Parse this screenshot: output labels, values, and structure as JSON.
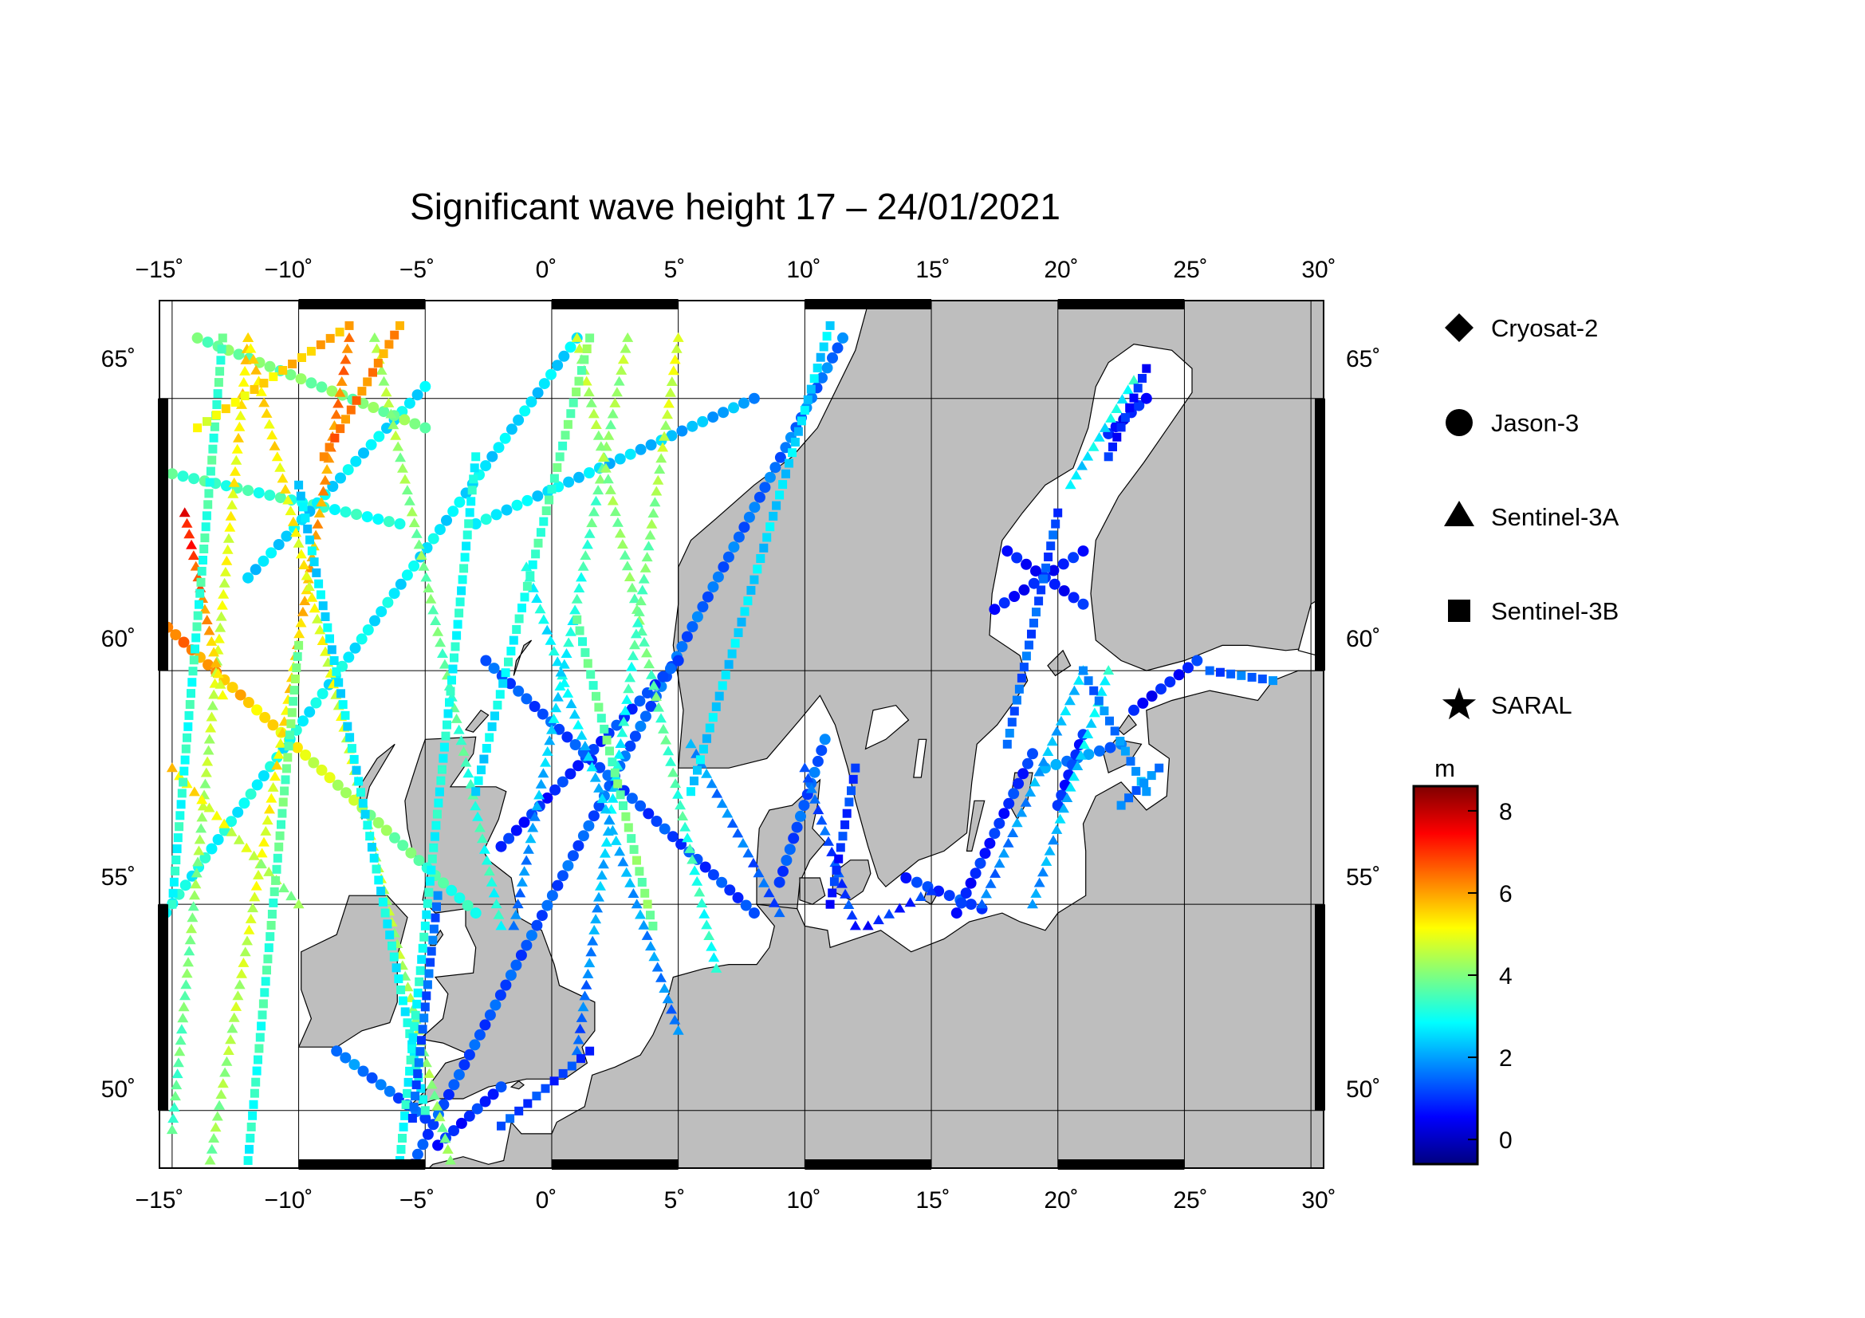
{
  "title": "Significant wave height 17 – 24/01/2021",
  "map": {
    "lon_range": [
      -15.5,
      30.5
    ],
    "lat_range": [
      48.5,
      66.6
    ],
    "lon_ticks": [
      -15,
      -10,
      -5,
      0,
      5,
      10,
      15,
      20,
      25,
      30
    ],
    "lat_ticks": [
      50,
      55,
      60,
      65
    ],
    "lon_tick_labels": [
      "−15˚",
      "−10˚",
      "−5˚",
      "0˚",
      "5˚",
      "10˚",
      "15˚",
      "20˚",
      "25˚",
      "30˚"
    ],
    "lat_tick_labels": [
      "50˚",
      "55˚",
      "60˚",
      "65˚"
    ],
    "land_color": "#bebebe",
    "sea_color": "#ffffff",
    "grid": true
  },
  "legend": {
    "satellites": [
      {
        "name": "Cryosat-2",
        "marker": "diamond"
      },
      {
        "name": "Jason-3",
        "marker": "circle"
      },
      {
        "name": "Sentinel-3A",
        "marker": "triangle"
      },
      {
        "name": "Sentinel-3B",
        "marker": "square"
      },
      {
        "name": "SARAL",
        "marker": "star"
      }
    ]
  },
  "colorbar": {
    "unit": "m",
    "min": -0.6,
    "max": 8.6,
    "ticks": [
      0,
      2,
      4,
      6,
      8
    ],
    "tick_labels": [
      "0",
      "2",
      "4",
      "6",
      "8"
    ],
    "colors": [
      "#00007f",
      "#0000ff",
      "#007fff",
      "#00ffff",
      "#7fff7f",
      "#ffff00",
      "#ff7f00",
      "#ff0000",
      "#7f0000"
    ]
  },
  "chart_data": {
    "type": "scatter",
    "variable": "significant wave height (m)",
    "tracks": [
      {
        "sat": "Jason-3",
        "from": [
          -5.5,
          48.6
        ],
        "to": [
          11.5,
          66.0
        ],
        "v0": 1.2,
        "v1": 1.6
      },
      {
        "sat": "Jason-3",
        "from": [
          -15.5,
          61.0
        ],
        "to": [
          -3.0,
          54.8
        ],
        "v0": 6.6,
        "v1": 3.0
      },
      {
        "sat": "Jason-3",
        "from": [
          -15.5,
          54.6
        ],
        "to": [
          1.0,
          66.0
        ],
        "v0": 3.0,
        "v1": 2.5
      },
      {
        "sat": "Jason-3",
        "from": [
          -2.0,
          56.3
        ],
        "to": [
          5.0,
          60.2
        ],
        "v0": 0.8,
        "v1": 1.2
      },
      {
        "sat": "Jason-3",
        "from": [
          -2.6,
          60.2
        ],
        "to": [
          8.0,
          54.8
        ],
        "v0": 1.3,
        "v1": 1.1
      },
      {
        "sat": "Jason-3",
        "from": [
          -8.5,
          51.5
        ],
        "to": [
          -5.0,
          49.8
        ],
        "v0": 1.8,
        "v1": 1.2
      },
      {
        "sat": "Jason-3",
        "from": [
          -4.5,
          49.1
        ],
        "to": [
          -2.0,
          50.6
        ],
        "v0": 0.8,
        "v1": 1.0
      },
      {
        "sat": "Jason-3",
        "from": [
          9.0,
          55.5
        ],
        "to": [
          10.8,
          58.6
        ],
        "v0": 1.2,
        "v1": 1.5
      },
      {
        "sat": "Jason-3",
        "from": [
          14.0,
          55.6
        ],
        "to": [
          17.0,
          54.9
        ],
        "v0": 1.0,
        "v1": 1.2
      },
      {
        "sat": "Jason-3",
        "from": [
          16.0,
          54.8
        ],
        "to": [
          19.0,
          58.3
        ],
        "v0": 0.8,
        "v1": 1.0
      },
      {
        "sat": "Jason-3",
        "from": [
          17.5,
          61.2
        ],
        "to": [
          21.0,
          62.3
        ],
        "v0": 0.6,
        "v1": 0.8
      },
      {
        "sat": "Jason-3",
        "from": [
          18.0,
          62.3
        ],
        "to": [
          21.0,
          61.3
        ],
        "v0": 0.6,
        "v1": 0.8
      },
      {
        "sat": "Jason-3",
        "from": [
          23.0,
          59.2
        ],
        "to": [
          25.5,
          60.2
        ],
        "v0": 0.6,
        "v1": 0.9
      },
      {
        "sat": "Jason-3",
        "from": [
          19.5,
          58.0
        ],
        "to": [
          22.5,
          58.5
        ],
        "v0": 2.0,
        "v1": 1.5
      },
      {
        "sat": "Jason-3",
        "from": [
          20.0,
          57.2
        ],
        "to": [
          21.0,
          58.7
        ],
        "v0": 0.8,
        "v1": 1.0
      },
      {
        "sat": "Jason-3",
        "from": [
          22.0,
          64.4
        ],
        "to": [
          23.5,
          65.0
        ],
        "v0": 0.6,
        "v1": 0.8
      },
      {
        "sat": "Jason-3",
        "from": [
          -15.0,
          63.7
        ],
        "to": [
          -6.0,
          62.8
        ],
        "v0": 3.5,
        "v1": 3.0
      },
      {
        "sat": "Jason-3",
        "from": [
          -12.0,
          61.8
        ],
        "to": [
          -5.0,
          65.2
        ],
        "v0": 2.5,
        "v1": 2.7
      },
      {
        "sat": "Jason-3",
        "from": [
          -3.0,
          62.8
        ],
        "to": [
          8.0,
          65.0
        ],
        "v0": 2.8,
        "v1": 2.0
      },
      {
        "sat": "Jason-3",
        "from": [
          -14.0,
          66.0
        ],
        "to": [
          -5.0,
          64.5
        ],
        "v0": 3.8,
        "v1": 4.0
      },
      {
        "sat": "Sentinel-3A",
        "from": [
          -15.0,
          49.5
        ],
        "to": [
          -12.0,
          66.0
        ],
        "v0": 3.5,
        "v1": 5.5
      },
      {
        "sat": "Sentinel-3A",
        "from": [
          -13.5,
          48.7
        ],
        "to": [
          -8.0,
          66.0
        ],
        "v0": 4.0,
        "v1": 6.5
      },
      {
        "sat": "Sentinel-3A",
        "from": [
          -12.0,
          66.0
        ],
        "to": [
          -4.0,
          48.7
        ],
        "v0": 5.5,
        "v1": 4.0
      },
      {
        "sat": "Sentinel-3A",
        "from": [
          -7.0,
          66.0
        ],
        "to": [
          -2.0,
          54.5
        ],
        "v0": 4.5,
        "v1": 3.0
      },
      {
        "sat": "Sentinel-3A",
        "from": [
          -1.5,
          54.5
        ],
        "to": [
          3.0,
          66.0
        ],
        "v0": 1.5,
        "v1": 4.5
      },
      {
        "sat": "Sentinel-3A",
        "from": [
          1.0,
          66.0
        ],
        "to": [
          6.5,
          53.5
        ],
        "v0": 4.5,
        "v1": 3.0
      },
      {
        "sat": "Sentinel-3A",
        "from": [
          1.0,
          51.5
        ],
        "to": [
          5.0,
          66.0
        ],
        "v0": 1.3,
        "v1": 5.0
      },
      {
        "sat": "Sentinel-3A",
        "from": [
          -1.0,
          62.0
        ],
        "to": [
          5.0,
          52.0
        ],
        "v0": 3.0,
        "v1": 1.6
      },
      {
        "sat": "Sentinel-3A",
        "from": [
          5.5,
          58.5
        ],
        "to": [
          9.0,
          54.8
        ],
        "v0": 2.0,
        "v1": 1.2
      },
      {
        "sat": "Sentinel-3A",
        "from": [
          10.0,
          58.0
        ],
        "to": [
          12.0,
          54.5
        ],
        "v0": 1.5,
        "v1": 1.0
      },
      {
        "sat": "Sentinel-3A",
        "from": [
          12.5,
          54.5
        ],
        "to": [
          15.0,
          55.3
        ],
        "v0": 0.8,
        "v1": 1.0
      },
      {
        "sat": "Sentinel-3A",
        "from": [
          17.0,
          55.0
        ],
        "to": [
          21.0,
          60.0
        ],
        "v0": 1.5,
        "v1": 2.5
      },
      {
        "sat": "Sentinel-3A",
        "from": [
          19.0,
          55.0
        ],
        "to": [
          22.0,
          60.0
        ],
        "v0": 1.8,
        "v1": 3.0
      },
      {
        "sat": "Sentinel-3A",
        "from": [
          20.5,
          63.5
        ],
        "to": [
          23.0,
          65.3
        ],
        "v0": 2.5,
        "v1": 3.0
      },
      {
        "sat": "Sentinel-3A",
        "from": [
          -15.0,
          58.0
        ],
        "to": [
          -10.0,
          55.0
        ],
        "v0": 5.5,
        "v1": 4.0
      },
      {
        "sat": "Sentinel-3A",
        "from": [
          -14.5,
          63.0
        ],
        "to": [
          -13.0,
          59.5
        ],
        "v0": 7.5,
        "v1": 5.0
      },
      {
        "sat": "Sentinel-3B",
        "from": [
          -15.0,
          55.0
        ],
        "to": [
          -13.0,
          66.0
        ],
        "v0": 3.0,
        "v1": 3.5
      },
      {
        "sat": "Sentinel-3B",
        "from": [
          -12.0,
          48.7
        ],
        "to": [
          -10.0,
          60.5
        ],
        "v0": 3.0,
        "v1": 4.0
      },
      {
        "sat": "Sentinel-3B",
        "from": [
          -10.0,
          63.5
        ],
        "to": [
          -5.0,
          50.0
        ],
        "v0": 2.5,
        "v1": 3.0
      },
      {
        "sat": "Sentinel-3B",
        "from": [
          -6.0,
          48.7
        ],
        "to": [
          -3.0,
          64.0
        ],
        "v0": 3.0,
        "v1": 3.0
      },
      {
        "sat": "Sentinel-3B",
        "from": [
          -5.5,
          49.8
        ],
        "to": [
          -4.5,
          55.2
        ],
        "v0": 1.3,
        "v1": 1.5
      },
      {
        "sat": "Sentinel-3B",
        "from": [
          -2.0,
          49.6
        ],
        "to": [
          1.5,
          51.5
        ],
        "v0": 1.2,
        "v1": 1.0
      },
      {
        "sat": "Sentinel-3B",
        "from": [
          1.0,
          61.0
        ],
        "to": [
          4.0,
          54.5
        ],
        "v0": 3.5,
        "v1": 4.0
      },
      {
        "sat": "Sentinel-3B",
        "from": [
          -3.0,
          57.5
        ],
        "to": [
          1.5,
          66.0
        ],
        "v0": 2.5,
        "v1": 4.0
      },
      {
        "sat": "Sentinel-3B",
        "from": [
          5.5,
          57.5
        ],
        "to": [
          11.0,
          66.2
        ],
        "v0": 2.5,
        "v1": 2.5
      },
      {
        "sat": "Sentinel-3B",
        "from": [
          11.0,
          55.0
        ],
        "to": [
          12.0,
          58.0
        ],
        "v0": 0.8,
        "v1": 1.2
      },
      {
        "sat": "Sentinel-3B",
        "from": [
          18.0,
          58.5
        ],
        "to": [
          20.0,
          63.0
        ],
        "v0": 1.5,
        "v1": 1.2
      },
      {
        "sat": "Sentinel-3B",
        "from": [
          21.0,
          60.0
        ],
        "to": [
          23.5,
          57.5
        ],
        "v0": 1.5,
        "v1": 2.0
      },
      {
        "sat": "Sentinel-3B",
        "from": [
          22.0,
          64.0
        ],
        "to": [
          23.5,
          65.5
        ],
        "v0": 0.8,
        "v1": 0.8
      },
      {
        "sat": "Sentinel-3B",
        "from": [
          22.5,
          57.2
        ],
        "to": [
          24.0,
          58.0
        ],
        "v0": 1.5,
        "v1": 1.8
      },
      {
        "sat": "Sentinel-3B",
        "from": [
          26.0,
          60.0
        ],
        "to": [
          28.5,
          59.8
        ],
        "v0": 1.3,
        "v1": 1.6
      },
      {
        "sat": "Sentinel-3B",
        "from": [
          -14.0,
          64.5
        ],
        "to": [
          -8.0,
          66.2
        ],
        "v0": 5.0,
        "v1": 6.0
      },
      {
        "sat": "Sentinel-3B",
        "from": [
          -9.0,
          64.0
        ],
        "to": [
          -6.0,
          66.2
        ],
        "v0": 6.5,
        "v1": 6.0
      }
    ]
  }
}
